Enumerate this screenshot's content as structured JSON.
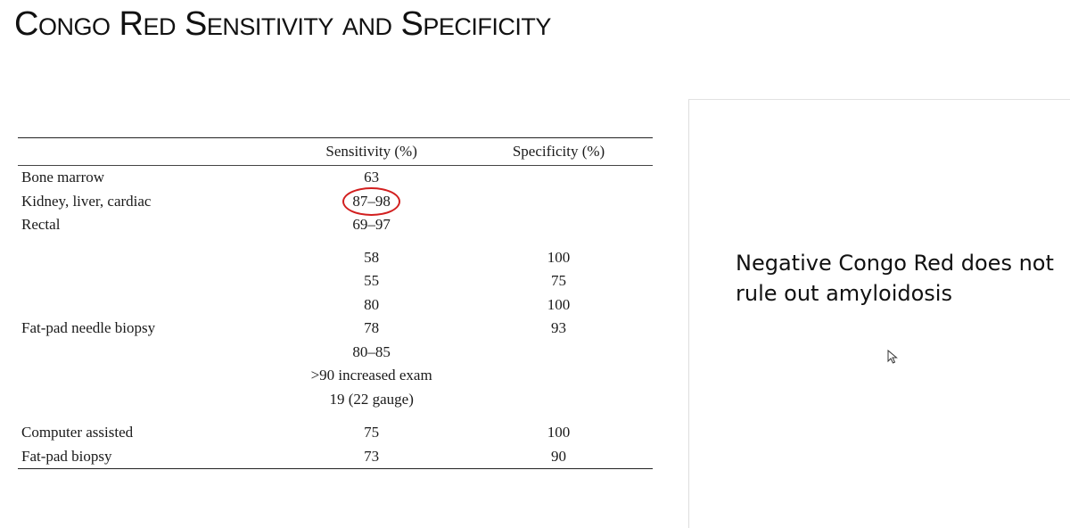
{
  "slide": {
    "title": "Congo Red Sensitivity and Specificity",
    "note": "Negative Congo Red does not rule out amyloidosis"
  },
  "table": {
    "headers": [
      "",
      "Sensitivity (%)",
      "Specificity (%)"
    ],
    "rows": [
      [
        "Bone marrow",
        "63",
        ""
      ],
      [
        "Kidney, liver, cardiac",
        "87–98",
        ""
      ],
      [
        "Rectal",
        "69–97",
        ""
      ],
      [
        "",
        "58",
        "100"
      ],
      [
        "",
        "55",
        "75"
      ],
      [
        "",
        "80",
        "100"
      ],
      [
        "Fat-pad needle biopsy",
        "78",
        "93"
      ],
      [
        "",
        "80–85",
        ""
      ],
      [
        "",
        ">90 increased exam",
        ""
      ],
      [
        "",
        "19 (22 gauge)",
        ""
      ],
      [
        "Computer assisted",
        "75",
        "100"
      ],
      [
        "Fat-pad biopsy",
        "73",
        "90"
      ]
    ],
    "highlighted_value": "87–98",
    "highlight_color": "#d21f1f"
  },
  "icons": {
    "cursor": "mouse-pointer-icon"
  }
}
